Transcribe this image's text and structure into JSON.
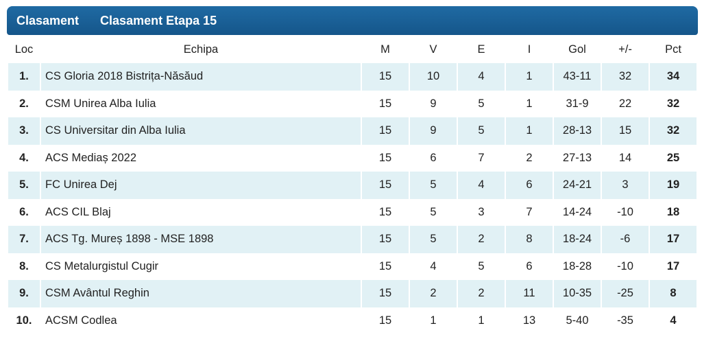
{
  "header": {
    "tab1": "Clasament",
    "tab2": "Clasament Etapa 15"
  },
  "columns": [
    "Loc",
    "Echipa",
    "M",
    "V",
    "E",
    "I",
    "Gol",
    "+/-",
    "Pct"
  ],
  "rows": [
    {
      "loc": "1.",
      "team": "CS Gloria 2018 Bistrița-Năsăud",
      "m": "15",
      "v": "10",
      "e": "4",
      "i": "1",
      "gol": "43-11",
      "diff": "32",
      "pct": "34"
    },
    {
      "loc": "2.",
      "team": "CSM Unirea Alba Iulia",
      "m": "15",
      "v": "9",
      "e": "5",
      "i": "1",
      "gol": "31-9",
      "diff": "22",
      "pct": "32"
    },
    {
      "loc": "3.",
      "team": "CS Universitar din Alba Iulia",
      "m": "15",
      "v": "9",
      "e": "5",
      "i": "1",
      "gol": "28-13",
      "diff": "15",
      "pct": "32"
    },
    {
      "loc": "4.",
      "team": "ACS Mediaș 2022",
      "m": "15",
      "v": "6",
      "e": "7",
      "i": "2",
      "gol": "27-13",
      "diff": "14",
      "pct": "25"
    },
    {
      "loc": "5.",
      "team": "FC Unirea Dej",
      "m": "15",
      "v": "5",
      "e": "4",
      "i": "6",
      "gol": "24-21",
      "diff": "3",
      "pct": "19"
    },
    {
      "loc": "6.",
      "team": "ACS CIL Blaj",
      "m": "15",
      "v": "5",
      "e": "3",
      "i": "7",
      "gol": "14-24",
      "diff": "-10",
      "pct": "18"
    },
    {
      "loc": "7.",
      "team": "ACS Tg. Mureș 1898 - MSE 1898",
      "m": "15",
      "v": "5",
      "e": "2",
      "i": "8",
      "gol": "18-24",
      "diff": "-6",
      "pct": "17"
    },
    {
      "loc": "8.",
      "team": "CS Metalurgistul Cugir",
      "m": "15",
      "v": "4",
      "e": "5",
      "i": "6",
      "gol": "18-28",
      "diff": "-10",
      "pct": "17"
    },
    {
      "loc": "9.",
      "team": "CSM Avântul Reghin",
      "m": "15",
      "v": "2",
      "e": "2",
      "i": "11",
      "gol": "10-35",
      "diff": "-25",
      "pct": "8"
    },
    {
      "loc": "10.",
      "team": "ACSM Codlea",
      "m": "15",
      "v": "1",
      "e": "1",
      "i": "13",
      "gol": "5-40",
      "diff": "-35",
      "pct": "4"
    }
  ]
}
